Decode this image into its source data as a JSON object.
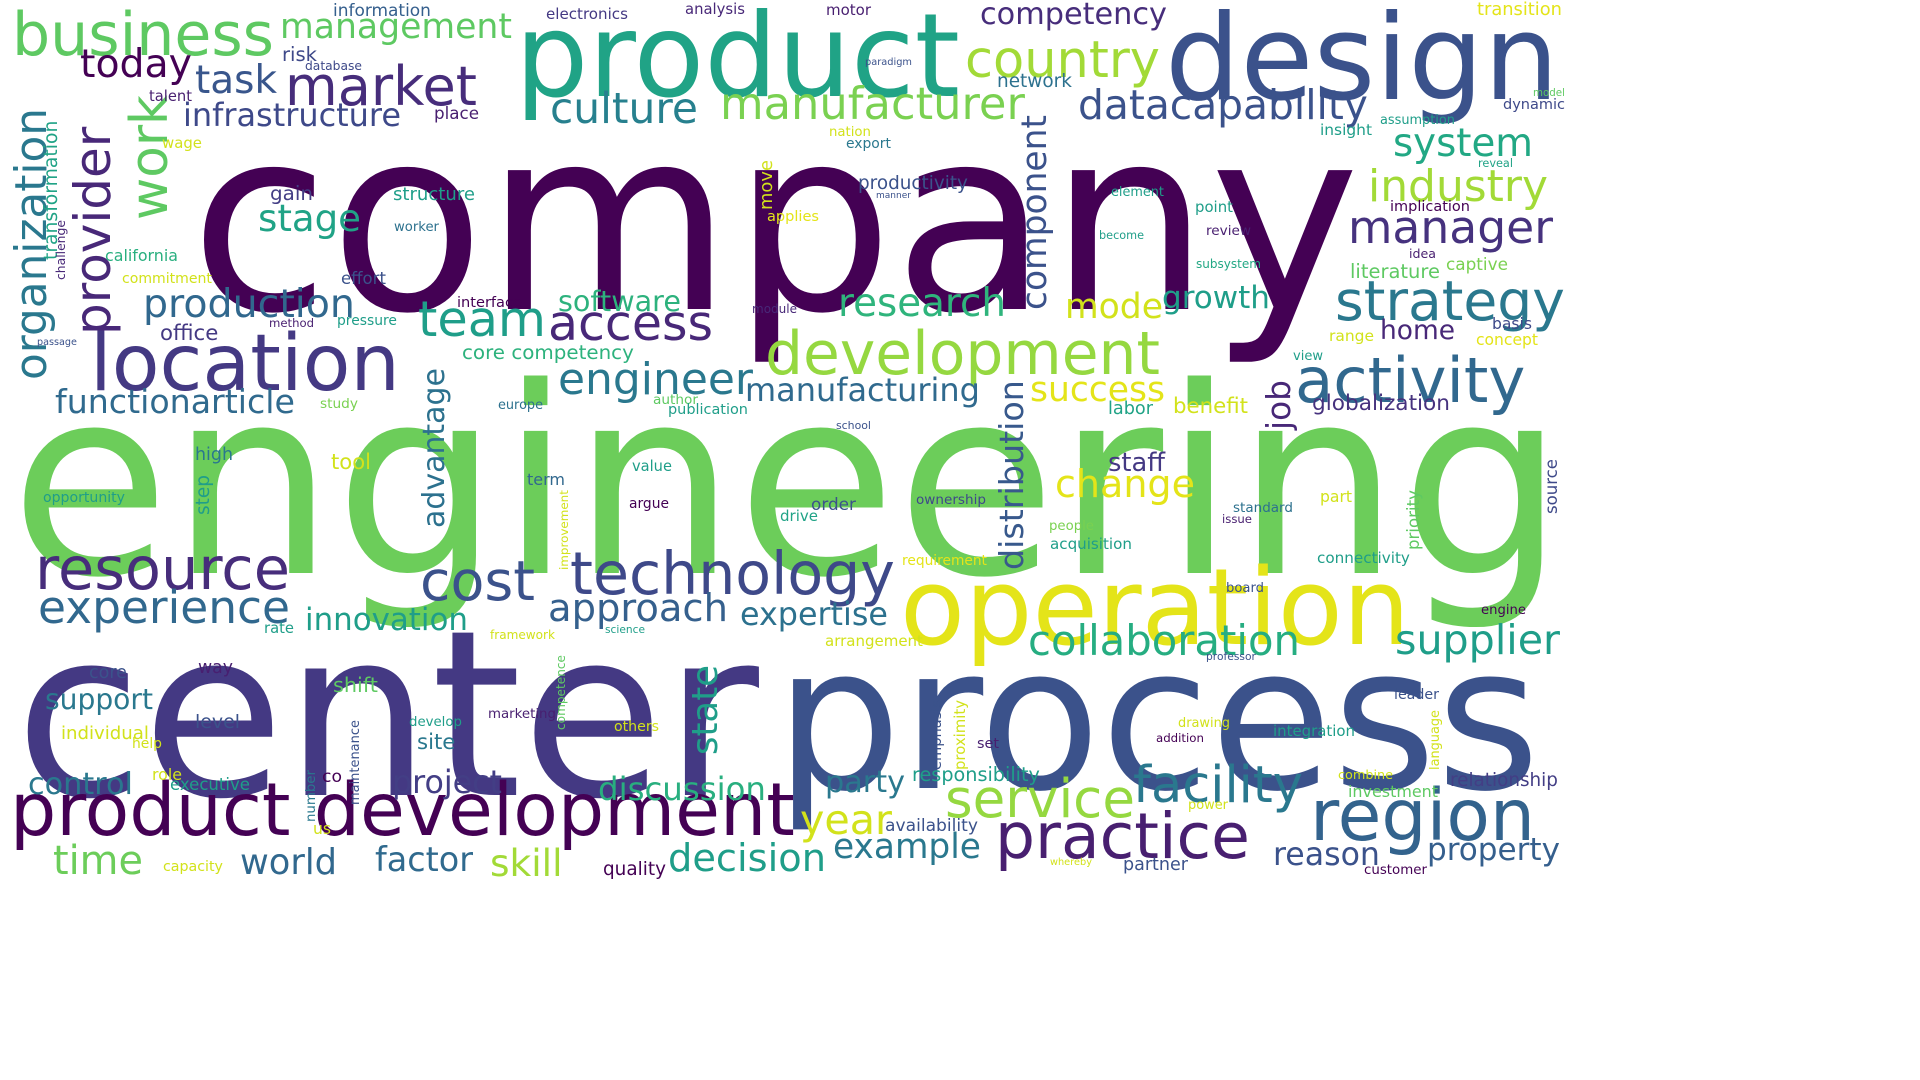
{
  "words": [
    {
      "t": "company",
      "c": "#440154"
    },
    {
      "t": "engineering",
      "c": "#6ccd5a"
    },
    {
      "t": "center",
      "c": "#443983"
    },
    {
      "t": "process",
      "c": "#3b528b"
    },
    {
      "t": "product",
      "c": "#20a386"
    },
    {
      "t": "design",
      "c": "#3b528b"
    },
    {
      "t": "operation",
      "c": "#e4e419"
    },
    {
      "t": "product development",
      "c": "#440154"
    },
    {
      "t": "development",
      "c": "#95d840"
    },
    {
      "t": "location",
      "c": "#443983"
    },
    {
      "t": "technology",
      "c": "#3e4989"
    },
    {
      "t": "practice",
      "c": "#481f70"
    },
    {
      "t": "region",
      "c": "#33638d"
    },
    {
      "t": "resource",
      "c": "#472d7b"
    },
    {
      "t": "team",
      "c": "#1f9e89"
    },
    {
      "t": "access",
      "c": "#482878"
    },
    {
      "t": "business",
      "c": "#5ec962"
    },
    {
      "t": "market",
      "c": "#472d7b"
    },
    {
      "t": "activity",
      "c": "#31688e"
    },
    {
      "t": "strategy",
      "c": "#2a788e"
    },
    {
      "t": "cost",
      "c": "#3b528b"
    },
    {
      "t": "manufacturer",
      "c": "#7ad151"
    },
    {
      "t": "experience",
      "c": "#31688e"
    },
    {
      "t": "service",
      "c": "#95d840"
    },
    {
      "t": "provider",
      "c": "#482878"
    },
    {
      "t": "organization",
      "c": "#2a788e"
    },
    {
      "t": "approach",
      "c": "#35608d"
    },
    {
      "t": "facility",
      "c": "#2a788e"
    },
    {
      "t": "change",
      "c": "#e4e419"
    },
    {
      "t": "management",
      "c": "#5ec962"
    },
    {
      "t": "country",
      "c": "#a2da37"
    },
    {
      "t": "manager",
      "c": "#46327e"
    },
    {
      "t": "engineer",
      "c": "#2a788e"
    },
    {
      "t": "collaboration",
      "c": "#26ad81"
    },
    {
      "t": "datacapability",
      "c": "#3b528b"
    },
    {
      "t": "component",
      "c": "#3b528b"
    },
    {
      "t": "supplier",
      "c": "#1f9e89"
    },
    {
      "t": "industry",
      "c": "#a2da37"
    },
    {
      "t": "system",
      "c": "#22a884"
    },
    {
      "t": "research",
      "c": "#2fb47c"
    },
    {
      "t": "culture",
      "c": "#27808e"
    },
    {
      "t": "work",
      "c": "#5ec962"
    },
    {
      "t": "production",
      "c": "#31688e"
    },
    {
      "t": "growth",
      "c": "#1f9e89"
    },
    {
      "t": "competency",
      "c": "#472d7b"
    },
    {
      "t": "year",
      "c": "#d2e21b"
    },
    {
      "t": "example",
      "c": "#2a788e"
    },
    {
      "t": "decision",
      "c": "#1f9e89"
    },
    {
      "t": "manufacturing",
      "c": "#306a8e"
    },
    {
      "t": "task",
      "c": "#39568c"
    },
    {
      "t": "today",
      "c": "#440154"
    },
    {
      "t": "stage",
      "c": "#20a386"
    },
    {
      "t": "mode",
      "c": "#d2e21b"
    },
    {
      "t": "success",
      "c": "#e4e419"
    },
    {
      "t": "infrastructure",
      "c": "#3e4989"
    },
    {
      "t": "innovation",
      "c": "#1f9e89"
    },
    {
      "t": "expertise",
      "c": "#2c718e"
    },
    {
      "t": "state",
      "c": "#1f9e89"
    },
    {
      "t": "discussion",
      "c": "#29af7f"
    },
    {
      "t": "world",
      "c": "#31688e"
    },
    {
      "t": "time",
      "c": "#6ccd5a"
    },
    {
      "t": "factor",
      "c": "#306a8e"
    },
    {
      "t": "project",
      "c": "#433e85"
    },
    {
      "t": "reason",
      "c": "#3b528b"
    },
    {
      "t": "property",
      "c": "#355f8d"
    },
    {
      "t": "home",
      "c": "#482878"
    },
    {
      "t": "advantage",
      "c": "#2c718e"
    },
    {
      "t": "distribution",
      "c": "#38598c"
    },
    {
      "t": "party",
      "c": "#2a788e"
    },
    {
      "t": "functionarticle",
      "c": "#306a8e"
    },
    {
      "t": "control",
      "c": "#2a788e"
    },
    {
      "t": "support",
      "c": "#2a788e"
    },
    {
      "t": "software",
      "c": "#2db27d"
    },
    {
      "t": "skill",
      "c": "#a2da37"
    },
    {
      "t": "job",
      "c": "#482878"
    },
    {
      "t": "globalization",
      "c": "#46327e"
    },
    {
      "t": "benefit",
      "c": "#d2e21b"
    },
    {
      "t": "staff",
      "c": "#443983"
    },
    {
      "t": "way",
      "c": "#481f70"
    },
    {
      "t": "responsibility",
      "c": "#1f9e89"
    },
    {
      "t": "relationship",
      "c": "#433e85"
    },
    {
      "t": "information",
      "c": "#355f8d"
    },
    {
      "t": "electronics",
      "c": "#443983"
    },
    {
      "t": "analysis",
      "c": "#482878"
    },
    {
      "t": "motor",
      "c": "#481f70"
    },
    {
      "t": "transition",
      "c": "#e4e419"
    },
    {
      "t": "risk",
      "c": "#3e4989"
    },
    {
      "t": "database",
      "c": "#3e4989"
    },
    {
      "t": "paradigm",
      "c": "#3b528b"
    },
    {
      "t": "network",
      "c": "#2c718e"
    },
    {
      "t": "talent",
      "c": "#481f70"
    },
    {
      "t": "place",
      "c": "#481f70"
    },
    {
      "t": "model",
      "c": "#5ec962"
    },
    {
      "t": "dynamic",
      "c": "#3e4989"
    },
    {
      "t": "assumption",
      "c": "#1f9e89"
    },
    {
      "t": "insight",
      "c": "#1f9e89"
    },
    {
      "t": "nation",
      "c": "#d2e21b"
    },
    {
      "t": "export",
      "c": "#2a788e"
    },
    {
      "t": "wage",
      "c": "#d2e21b"
    },
    {
      "t": "reveal",
      "c": "#20a386"
    },
    {
      "t": "productivity",
      "c": "#3b528b"
    },
    {
      "t": "manner",
      "c": "#3b528b"
    },
    {
      "t": "element",
      "c": "#1f9e89"
    },
    {
      "t": "point",
      "c": "#1f9e89"
    },
    {
      "t": "implication",
      "c": "#440154"
    },
    {
      "t": "gain",
      "c": "#433e85"
    },
    {
      "t": "structure",
      "c": "#1f9e89"
    },
    {
      "t": "move",
      "c": "#d2e21b"
    },
    {
      "t": "applies",
      "c": "#e4e419"
    },
    {
      "t": "worker",
      "c": "#2c718e"
    },
    {
      "t": "become",
      "c": "#1f9e89"
    },
    {
      "t": "review",
      "c": "#481f70"
    },
    {
      "t": "idea",
      "c": "#481f70"
    },
    {
      "t": "captive",
      "c": "#7ad151"
    },
    {
      "t": "literature",
      "c": "#5ec962"
    },
    {
      "t": "subsystem",
      "c": "#22a884"
    },
    {
      "t": "california",
      "c": "#29af7f"
    },
    {
      "t": "transformation",
      "c": "#20a386"
    },
    {
      "t": "challenge",
      "c": "#482878"
    },
    {
      "t": "commitment",
      "c": "#d2e21b"
    },
    {
      "t": "effort",
      "c": "#3b528b"
    },
    {
      "t": "interface",
      "c": "#440154"
    },
    {
      "t": "module",
      "c": "#482878"
    },
    {
      "t": "office",
      "c": "#443983"
    },
    {
      "t": "method",
      "c": "#481f70"
    },
    {
      "t": "pressure",
      "c": "#1f9e89"
    },
    {
      "t": "passage",
      "c": "#3b528b"
    },
    {
      "t": "core competency",
      "c": "#2db27d"
    },
    {
      "t": "range",
      "c": "#d2e21b"
    },
    {
      "t": "basis",
      "c": "#3e4989"
    },
    {
      "t": "concept",
      "c": "#e4e419"
    },
    {
      "t": "view",
      "c": "#1f9e89"
    },
    {
      "t": "study",
      "c": "#7ad151"
    },
    {
      "t": "europe",
      "c": "#2c718e"
    },
    {
      "t": "author",
      "c": "#5ec962"
    },
    {
      "t": "publication",
      "c": "#1f9e89"
    },
    {
      "t": "labor",
      "c": "#20a386"
    },
    {
      "t": "school",
      "c": "#3b528b"
    },
    {
      "t": "high",
      "c": "#2a788e"
    },
    {
      "t": "tool",
      "c": "#d2e21b"
    },
    {
      "t": "step",
      "c": "#1f9e89"
    },
    {
      "t": "value",
      "c": "#1f9e89"
    },
    {
      "t": "term",
      "c": "#31688e"
    },
    {
      "t": "opportunity",
      "c": "#1f9e89"
    },
    {
      "t": "improvement",
      "c": "#d2e21b"
    },
    {
      "t": "argue",
      "c": "#440154"
    },
    {
      "t": "drive",
      "c": "#20a386"
    },
    {
      "t": "order",
      "c": "#3b528b"
    },
    {
      "t": "ownership",
      "c": "#3e4989"
    },
    {
      "t": "people",
      "c": "#7ad151"
    },
    {
      "t": "acquisition",
      "c": "#1f9e89"
    },
    {
      "t": "issue",
      "c": "#481f70"
    },
    {
      "t": "standard",
      "c": "#2c718e"
    },
    {
      "t": "part",
      "c": "#d2e21b"
    },
    {
      "t": "priority",
      "c": "#5ec962"
    },
    {
      "t": "source",
      "c": "#3e4989"
    },
    {
      "t": "connectivity",
      "c": "#1f9e89"
    },
    {
      "t": "requirement",
      "c": "#e4e419"
    },
    {
      "t": "board",
      "c": "#3b528b"
    },
    {
      "t": "engine",
      "c": "#440154"
    },
    {
      "t": "rate",
      "c": "#1f9e89"
    },
    {
      "t": "framework",
      "c": "#d2e21b"
    },
    {
      "t": "science",
      "c": "#1f9e89"
    },
    {
      "t": "arrangement",
      "c": "#d2e21b"
    },
    {
      "t": "professor",
      "c": "#3b528b"
    },
    {
      "t": "core",
      "c": "#3b528b"
    },
    {
      "t": "shift",
      "c": "#5ec962"
    },
    {
      "t": "level",
      "c": "#3b528b"
    },
    {
      "t": "individual",
      "c": "#d2e21b"
    },
    {
      "t": "help",
      "c": "#d2e21b"
    },
    {
      "t": "develop",
      "c": "#1f9e89"
    },
    {
      "t": "site",
      "c": "#2a788e"
    },
    {
      "t": "marketing",
      "c": "#481f70"
    },
    {
      "t": "others",
      "c": "#d2e21b"
    },
    {
      "t": "competence",
      "c": "#5ec962"
    },
    {
      "t": "maintenance",
      "c": "#3b528b"
    },
    {
      "t": "emphasis",
      "c": "#3b528b"
    },
    {
      "t": "proximity",
      "c": "#d2e21b"
    },
    {
      "t": "set",
      "c": "#481f70"
    },
    {
      "t": "drawing",
      "c": "#d2e21b"
    },
    {
      "t": "addition",
      "c": "#440154"
    },
    {
      "t": "integration",
      "c": "#1f9e89"
    },
    {
      "t": "language",
      "c": "#d2e21b"
    },
    {
      "t": "leader",
      "c": "#3b528b"
    },
    {
      "t": "role",
      "c": "#d2e21b"
    },
    {
      "t": "executive",
      "c": "#1f9e89"
    },
    {
      "t": "number",
      "c": "#2a788e"
    },
    {
      "t": "co",
      "c": "#440154"
    },
    {
      "t": "us",
      "c": "#d2e21b"
    },
    {
      "t": "availability",
      "c": "#3b528b"
    },
    {
      "t": "combine",
      "c": "#d2e21b"
    },
    {
      "t": "investment",
      "c": "#5ec962"
    },
    {
      "t": "power",
      "c": "#d2e21b"
    },
    {
      "t": "capacity",
      "c": "#d2e21b"
    },
    {
      "t": "quality",
      "c": "#440154"
    },
    {
      "t": "whereby",
      "c": "#d2e21b"
    },
    {
      "t": "partner",
      "c": "#3b528b"
    },
    {
      "t": "customer",
      "c": "#440154"
    }
  ]
}
